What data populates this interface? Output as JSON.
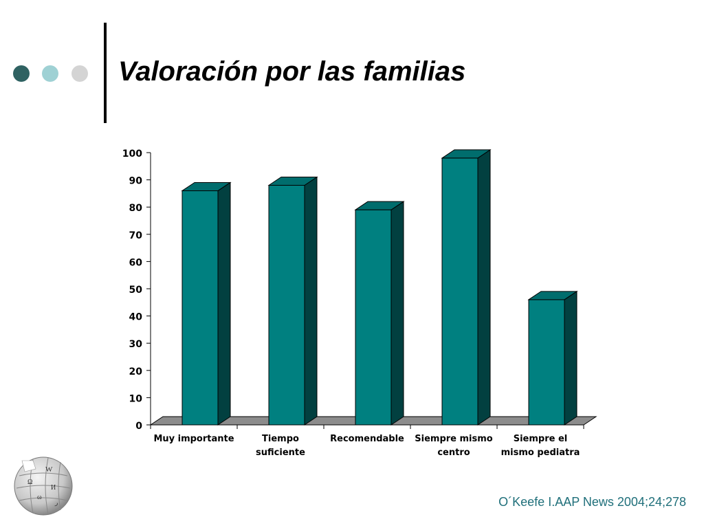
{
  "slide": {
    "title": "Valoración por las familias",
    "citation": "O´Keefe I.AAP News 2004;24;278"
  },
  "colors": {
    "dot1": "#2f6262",
    "dot2": "#9fd1d4",
    "dot3": "#d4d4d4",
    "bar_front": "#008080",
    "bar_side": "#024040",
    "bar_top": "#006d6d",
    "floor": "#8c8c8c",
    "citation": "#1f6f7a"
  },
  "icons": [
    "wikipedia-globe-icon"
  ],
  "chart_data": {
    "type": "bar",
    "categories": [
      [
        "Muy importante"
      ],
      [
        "Tiempo",
        "suficiente"
      ],
      [
        "Recomendable"
      ],
      [
        "Siempre mismo",
        "centro"
      ],
      [
        "Siempre el",
        "mismo pediatra"
      ]
    ],
    "values": [
      86,
      88,
      79,
      98,
      46
    ],
    "yticks": [
      "0",
      "10",
      "20",
      "30",
      "40",
      "50",
      "60",
      "70",
      "80",
      "90",
      "100"
    ],
    "ylim": [
      0,
      100
    ],
    "title": "",
    "xlabel": "",
    "ylabel": "",
    "three_d": true,
    "grid": false,
    "legend": "none"
  }
}
